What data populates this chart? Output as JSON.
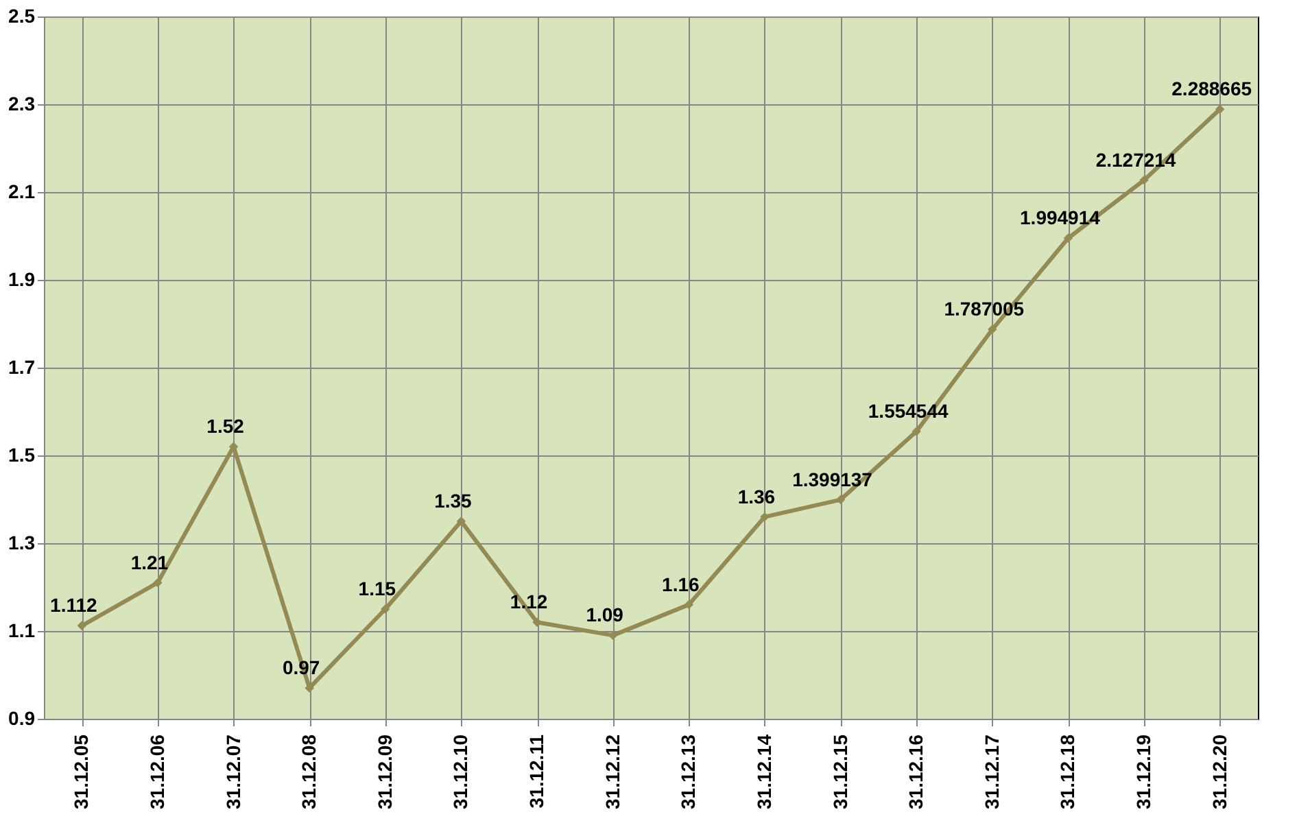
{
  "chart_data": {
    "type": "line",
    "categories": [
      "31.12.05",
      "31.12.06",
      "31.12.07",
      "31.12.08",
      "31.12.09",
      "31.12.10",
      "31.12.11",
      "31.12.12",
      "31.12.13",
      "31.12.14",
      "31.12.15",
      "31.12.16",
      "31.12.17",
      "31.12.18",
      "31.12.19",
      "31.12.20"
    ],
    "series": [
      {
        "color": "#948a54",
        "values": [
          1.112,
          1.21,
          1.52,
          0.97,
          1.15,
          1.35,
          1.12,
          1.09,
          1.16,
          1.36,
          1.399137,
          1.554544,
          1.787005,
          1.994914,
          2.127214,
          2.288665
        ]
      }
    ],
    "ylim": [
      0.9,
      2.5
    ],
    "yticks": [
      {
        "value": 0.9,
        "label": "0.9"
      },
      {
        "value": 1.1,
        "label": "1.1"
      },
      {
        "value": 1.3,
        "label": "1.3"
      },
      {
        "value": 1.5,
        "label": "1.5"
      },
      {
        "value": 1.7,
        "label": "1.7"
      },
      {
        "value": 1.9,
        "label": "1.9"
      },
      {
        "value": 2.1,
        "label": "2.1"
      },
      {
        "value": 2.3,
        "label": "2.3"
      },
      {
        "value": 2.5,
        "label": "2.5"
      }
    ],
    "grid": true,
    "marker": "diamond",
    "data_labels": true
  }
}
